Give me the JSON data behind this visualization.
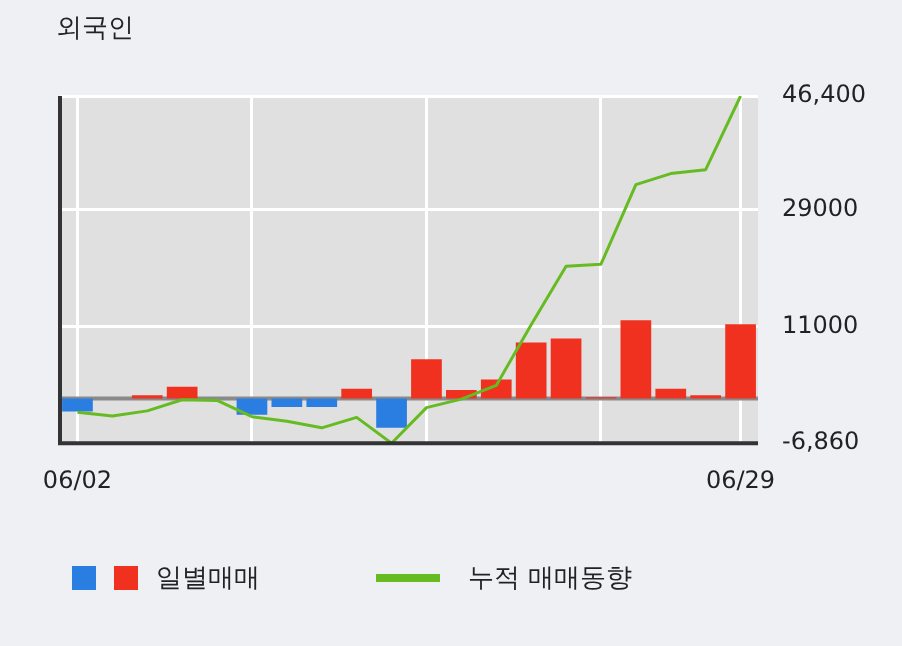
{
  "chart_data": {
    "type": "bar",
    "title": "외국인",
    "categories": [
      "06/02",
      null,
      null,
      null,
      null,
      null,
      null,
      null,
      null,
      null,
      null,
      null,
      null,
      null,
      null,
      null,
      null,
      null,
      null,
      "06/29"
    ],
    "series": [
      {
        "name": "일별매매",
        "colors": [
          "#2a7de1",
          "#f0311f",
          "#f0311f",
          "#f0311f",
          "#f0311f",
          "#2a7de1",
          "#2a7de1",
          "#2a7de1",
          "#f0311f",
          "#2a7de1",
          "#f0311f",
          "#f0311f",
          "#f0311f",
          "#f0311f",
          "#f0311f",
          "#f0311f",
          "#f0311f",
          "#f0311f",
          "#f0311f",
          "#f0311f"
        ],
        "values": [
          -2000,
          0,
          500,
          1800,
          0,
          -2500,
          -1300,
          -1300,
          1500,
          -4500,
          6000,
          1300,
          2900,
          8600,
          9200,
          200,
          12000,
          1500,
          500,
          11400
        ]
      },
      {
        "name": "누적 매매동향",
        "type": "line",
        "color": "#66bb22",
        "values": [
          -2100,
          -2700,
          -1900,
          -200,
          -300,
          -2800,
          -3500,
          -4500,
          -2900,
          -6860,
          -1400,
          -100,
          2000,
          11300,
          20300,
          20600,
          32800,
          34500,
          35100,
          46400
        ]
      }
    ],
    "ylim": [
      -6860,
      46400
    ],
    "yticks": [
      {
        "value": -6860,
        "label": "-6,860"
      },
      11000,
      29000,
      {
        "value": 46400,
        "label": "46,400"
      }
    ],
    "grid": true,
    "legend": "bottom",
    "marker": "none",
    "line_style": "solid"
  }
}
